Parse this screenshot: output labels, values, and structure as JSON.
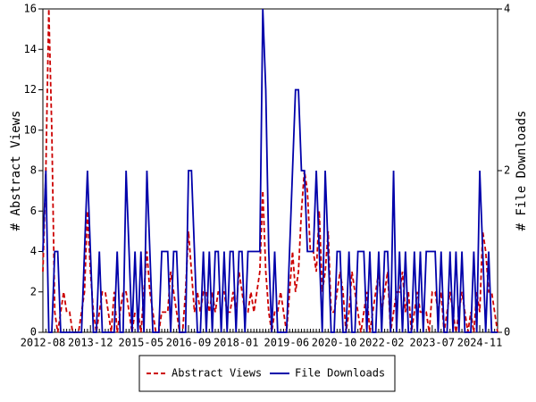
{
  "chart_data": {
    "type": "line",
    "categories": [
      "2012-08",
      null,
      null,
      null,
      null,
      null,
      null,
      null,
      null,
      null,
      null,
      null,
      null,
      null,
      null,
      null,
      "2013-12",
      null,
      null,
      null,
      null,
      null,
      null,
      null,
      null,
      null,
      null,
      null,
      null,
      null,
      null,
      null,
      null,
      "2015-05",
      null,
      null,
      null,
      null,
      null,
      null,
      null,
      null,
      null,
      null,
      null,
      null,
      null,
      null,
      null,
      "2016-09",
      null,
      null,
      null,
      null,
      null,
      null,
      null,
      null,
      null,
      null,
      null,
      null,
      null,
      null,
      null,
      "2018-01",
      null,
      null,
      null,
      null,
      null,
      null,
      null,
      null,
      null,
      null,
      null,
      null,
      null,
      null,
      null,
      null,
      "2019-06",
      null,
      null,
      null,
      null,
      null,
      null,
      null,
      null,
      null,
      null,
      null,
      null,
      null,
      null,
      null,
      "2020-10",
      null,
      null,
      null,
      null,
      null,
      null,
      null,
      null,
      null,
      null,
      null,
      null,
      null,
      null,
      null,
      "2022-02",
      null,
      null,
      null,
      null,
      null,
      null,
      null,
      null,
      null,
      null,
      null,
      null,
      null,
      null,
      null,
      null,
      "2023-07",
      null,
      null,
      null,
      null,
      null,
      null,
      null,
      null,
      null,
      null,
      null,
      null,
      null,
      null,
      null,
      "2024-11",
      null,
      null,
      null,
      null,
      null,
      null
    ],
    "series": [
      {
        "name": "Abstract Views",
        "color": "#cc0000",
        "dashed": true,
        "axis": "y",
        "values": [
          3,
          8,
          16,
          10,
          1,
          0,
          1,
          2,
          1,
          1,
          0,
          0,
          0,
          1,
          2,
          6,
          3,
          1,
          0,
          1,
          2,
          2,
          1,
          0,
          2,
          0,
          1,
          2,
          2,
          1,
          0,
          1,
          1,
          0,
          2,
          4,
          2,
          1,
          0,
          0,
          1,
          1,
          1,
          3,
          2,
          1,
          0,
          0,
          2,
          5,
          3,
          1,
          2,
          1,
          2,
          2,
          1,
          2,
          1,
          2,
          2,
          2,
          1,
          1,
          2,
          1,
          3,
          2,
          1,
          1,
          2,
          1,
          2,
          3,
          7,
          3,
          1,
          0,
          1,
          1,
          2,
          1,
          0,
          2,
          4,
          2,
          3,
          6,
          8,
          7,
          4,
          4,
          3,
          6,
          2,
          3,
          5,
          1,
          1,
          2,
          3,
          2,
          0,
          1,
          3,
          2,
          1,
          0,
          1,
          2,
          0,
          1,
          2,
          3,
          1,
          2,
          3,
          0,
          1,
          2,
          2,
          3,
          1,
          2,
          0,
          1,
          2,
          1,
          1,
          1,
          0,
          2,
          2,
          1,
          2,
          0,
          1,
          2,
          1,
          0,
          1,
          2,
          1,
          0,
          1,
          0,
          2,
          1,
          5,
          4,
          2,
          2,
          1,
          0
        ]
      },
      {
        "name": "File Downloads",
        "color": "#0000aa",
        "dashed": false,
        "axis": "y2",
        "values": [
          1,
          2,
          0,
          0,
          1,
          1,
          0,
          0,
          0,
          0,
          0,
          0,
          0,
          0,
          1,
          2,
          1,
          0,
          0,
          1,
          0,
          0,
          0,
          0,
          0,
          1,
          0,
          0,
          2,
          1,
          0,
          1,
          0,
          1,
          0,
          2,
          1,
          0,
          0,
          0,
          1,
          1,
          1,
          0,
          1,
          1,
          0,
          0,
          0,
          2,
          2,
          1,
          0,
          0,
          1,
          0,
          1,
          0,
          1,
          1,
          0,
          1,
          0,
          1,
          1,
          0,
          1,
          1,
          0,
          1,
          1,
          1,
          1,
          1,
          4,
          3,
          1,
          0,
          1,
          0,
          0,
          0,
          0,
          1,
          2,
          3,
          3,
          2,
          2,
          1,
          1,
          1,
          2,
          1,
          0,
          2,
          1,
          0,
          0,
          1,
          1,
          0,
          0,
          1,
          0,
          0,
          1,
          1,
          1,
          0,
          1,
          0,
          0,
          1,
          0,
          1,
          1,
          0,
          2,
          0,
          1,
          0,
          1,
          0,
          0,
          1,
          0,
          1,
          0,
          1,
          1,
          1,
          1,
          0,
          1,
          0,
          0,
          1,
          0,
          1,
          0,
          1,
          0,
          0,
          0,
          1,
          0,
          2,
          1,
          0,
          1,
          0,
          0,
          0
        ]
      }
    ],
    "ylabel": "# Abstract Views",
    "y2label": "# File Downloads",
    "ylim": [
      0,
      16
    ],
    "yticks": [
      0,
      2,
      4,
      6,
      8,
      10,
      12,
      14,
      16
    ],
    "y2lim": [
      0,
      4
    ],
    "y2ticks": [
      0,
      2,
      4
    ],
    "legend": "bottom"
  }
}
